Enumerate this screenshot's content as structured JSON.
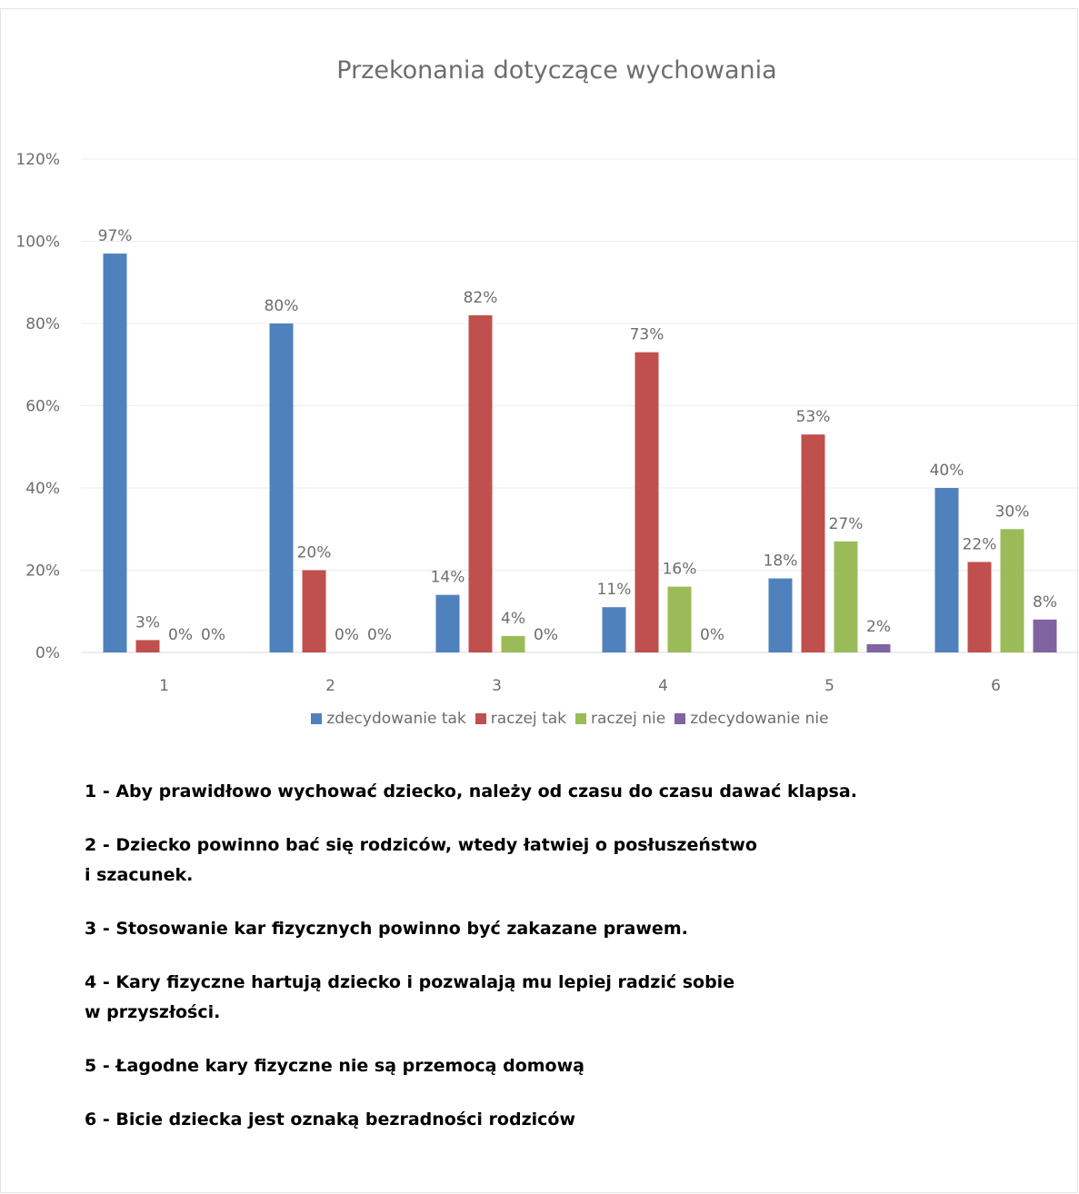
{
  "chart_data": {
    "type": "bar",
    "title": "Przekonania dotyczące wychowania",
    "categories": [
      "1",
      "2",
      "3",
      "4",
      "5",
      "6"
    ],
    "series": [
      {
        "name": "zdecydowanie tak",
        "color": "#4f81bd",
        "values": [
          97,
          80,
          14,
          11,
          18,
          40
        ]
      },
      {
        "name": "raczej tak",
        "color": "#c0504d",
        "values": [
          3,
          20,
          82,
          73,
          53,
          22
        ]
      },
      {
        "name": "raczej nie",
        "color": "#9bbb59",
        "values": [
          0,
          0,
          4,
          16,
          27,
          30
        ]
      },
      {
        "name": "zdecydowanie nie",
        "color": "#8064a2",
        "values": [
          0,
          0,
          0,
          0,
          2,
          8
        ]
      }
    ],
    "data_labels": [
      [
        "97%",
        "3%",
        "0%",
        "0%"
      ],
      [
        "80%",
        "20%",
        "0%",
        "0%"
      ],
      [
        "14%",
        "82%",
        "4%",
        "0%"
      ],
      [
        "11%",
        "73%",
        "16%",
        "0%"
      ],
      [
        "18%",
        "53%",
        "27%",
        "2%"
      ],
      [
        "40%",
        "22%",
        "30%",
        "8%"
      ]
    ],
    "y_ticks": [
      "0%",
      "20%",
      "40%",
      "60%",
      "80%",
      "100%",
      "120%"
    ],
    "ylim": [
      0,
      120
    ],
    "grid": true,
    "legend_position": "bottom"
  },
  "colors": {
    "grid": "#ececec",
    "axis_text": "#6d6d6d"
  },
  "notes": [
    "1 - Aby prawidłowo wychować dziecko, należy od czasu do czasu dawać klapsa.",
    "2 - Dziecko powinno bać się rodziców, wtedy łatwiej o posłuszeństwo\ni szacunek.",
    "3 - Stosowanie kar fizycznych powinno być zakazane prawem.",
    "4 - Kary fizyczne hartują dziecko i pozwalają mu lepiej radzić sobie\nw przyszłości.",
    "5 - Łagodne kary fizyczne nie są przemocą domową",
    "6 - Bicie dziecka jest oznaką bezradności rodziców"
  ]
}
